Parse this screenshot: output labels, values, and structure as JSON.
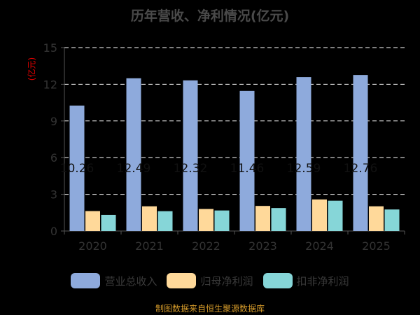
{
  "chart_data": {
    "type": "bar",
    "title": "历年营收、净利情况(亿元)",
    "ylabel": "(亿元)",
    "categories": [
      "2020",
      "2021",
      "2022",
      "2023",
      "2024",
      "2025"
    ],
    "ylim": [
      0,
      15
    ],
    "yticks": [
      0,
      3,
      6,
      9,
      12,
      15
    ],
    "grid": true,
    "legend_position": "bottom",
    "series": [
      {
        "name": "营业总收入",
        "color": "#8eaadc",
        "values": [
          10.26,
          12.49,
          12.32,
          11.46,
          12.59,
          12.76
        ],
        "data_labels": [
          "10.26",
          "12.49",
          "12.32",
          "11.46",
          "12.59",
          "12.76"
        ]
      },
      {
        "name": "归母净利润",
        "color": "#ffd99a",
        "values": [
          1.63,
          2.02,
          1.8,
          2.05,
          2.58,
          2.02
        ]
      },
      {
        "name": "扣非净利润",
        "color": "#86d6d8",
        "values": [
          1.32,
          1.62,
          1.68,
          1.88,
          2.48,
          1.76
        ]
      }
    ]
  },
  "source": "制图数据来自恒生聚源数据库"
}
